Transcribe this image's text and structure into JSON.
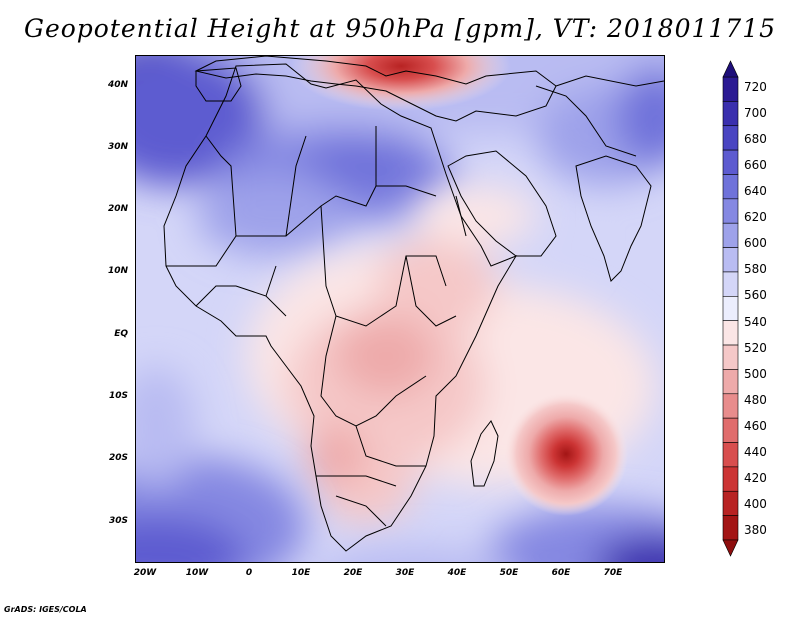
{
  "title": "Geopotential Height at 950hPa [gpm], VT: 2018011715",
  "credit": "GrADS: IGES/COLA",
  "map": {
    "variable": "Geopotential Height",
    "level": "950hPa",
    "units": "gpm",
    "valid_time": "2018011715",
    "lat_labels": [
      "40N",
      "30N",
      "20N",
      "10N",
      "EQ",
      "10S",
      "20S",
      "30S"
    ],
    "lon_labels": [
      "20W",
      "10W",
      "0",
      "10E",
      "20E",
      "30E",
      "40E",
      "50E",
      "60E",
      "70E"
    ],
    "features": [
      {
        "name": "Mediterranean low",
        "value_gpm": 420
      },
      {
        "name": "Mascarene cyclone near 60E 20S",
        "value_gpm": 400
      },
      {
        "name": "Sahara and Arabia high",
        "value_gpm": 600
      },
      {
        "name": "Southern ocean high",
        "value_gpm": 680
      }
    ]
  },
  "colorbar": {
    "levels": [
      720,
      700,
      680,
      660,
      640,
      620,
      600,
      580,
      560,
      540,
      520,
      500,
      480,
      460,
      440,
      420,
      400,
      380
    ],
    "colors": [
      "#2b1a93",
      "#3a2fae",
      "#4a45c2",
      "#5d5bd0",
      "#6f72da",
      "#8588e2",
      "#9ea2ea",
      "#b9bcf2",
      "#d4d6f8",
      "#eceefd",
      "#fbe6e6",
      "#f5c8c8",
      "#eeaaaa",
      "#e88c8c",
      "#e06c6c",
      "#d84e4e",
      "#cc3434",
      "#b82323",
      "#a31515"
    ],
    "max_color": "#1e0f7a",
    "min_color": "#8e0e0e"
  }
}
